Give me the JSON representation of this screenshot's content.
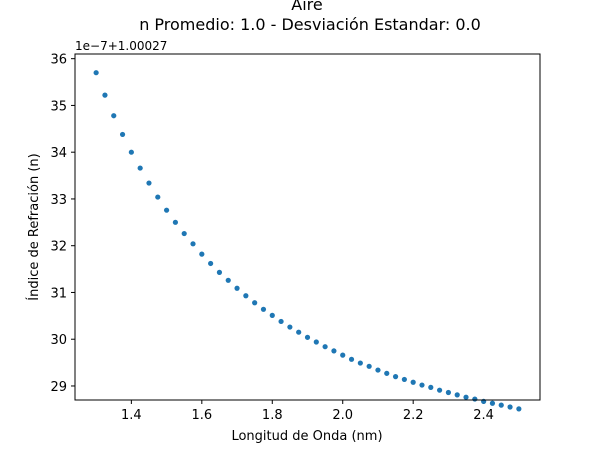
{
  "chart_data": {
    "type": "scatter",
    "title": "Aire",
    "subtitle": "n Promedio: 1.0 - Desviación Estandar: 0.0",
    "xlabel": "Longitud de Onda (nm)",
    "ylabel": "Índice de Refración (n)",
    "offset_label": "1e−7+1.00027",
    "xlim": [
      1.24,
      2.56
    ],
    "ylim": [
      28.7,
      36.1
    ],
    "x_ticks": [
      1.4,
      1.6,
      1.8,
      2.0,
      2.2,
      2.4
    ],
    "x_tick_labels": [
      "1.4",
      "1.6",
      "1.8",
      "2.0",
      "2.2",
      "2.4"
    ],
    "y_ticks": [
      29,
      30,
      31,
      32,
      33,
      34,
      35,
      36
    ],
    "y_tick_labels": [
      "29",
      "30",
      "31",
      "32",
      "33",
      "34",
      "35",
      "36"
    ],
    "grid": false,
    "legend": "none",
    "color": "#1f77b4",
    "series": [
      {
        "x": [
          1.3,
          1.325,
          1.35,
          1.375,
          1.4,
          1.425,
          1.45,
          1.475,
          1.5,
          1.525,
          1.55,
          1.575,
          1.6,
          1.625,
          1.65,
          1.675,
          1.7,
          1.725,
          1.75,
          1.775,
          1.8,
          1.825,
          1.85,
          1.875,
          1.9,
          1.925,
          1.95,
          1.975,
          2.0,
          2.025,
          2.05,
          2.075,
          2.1,
          2.125,
          2.15,
          2.175,
          2.2,
          2.225,
          2.25,
          2.275,
          2.3,
          2.325,
          2.35,
          2.375,
          2.4,
          2.425,
          2.45,
          2.475,
          2.5
        ],
        "y": [
          35.7,
          35.22,
          34.78,
          34.38,
          34.0,
          33.66,
          33.34,
          33.04,
          32.76,
          32.5,
          32.26,
          32.04,
          31.82,
          31.62,
          31.43,
          31.26,
          31.09,
          30.93,
          30.78,
          30.64,
          30.51,
          30.38,
          30.26,
          30.15,
          30.04,
          29.94,
          29.84,
          29.75,
          29.66,
          29.57,
          29.49,
          29.42,
          29.34,
          29.27,
          29.2,
          29.14,
          29.08,
          29.02,
          28.97,
          28.91,
          28.86,
          28.81,
          28.76,
          28.72,
          28.67,
          28.63,
          28.59,
          28.55,
          28.51
        ]
      }
    ]
  }
}
